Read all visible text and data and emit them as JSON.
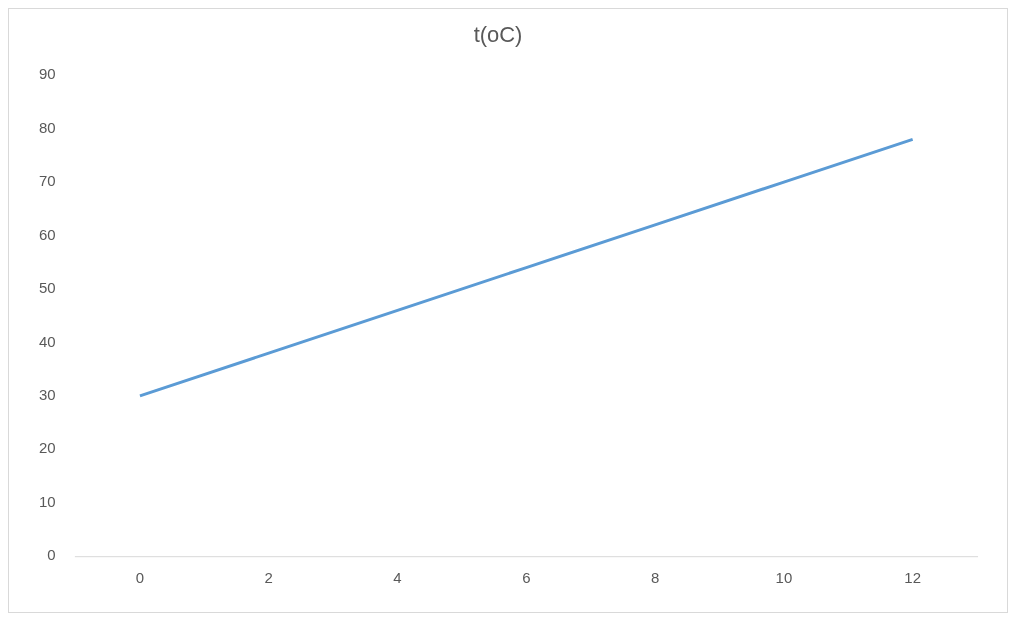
{
  "chart_data": {
    "type": "line",
    "title": "t(oC)",
    "categories": [
      "0",
      "2",
      "4",
      "6",
      "8",
      "10",
      "12"
    ],
    "series": [
      {
        "color": "#5b9bd5",
        "values": [
          30,
          38,
          46,
          54,
          62,
          70,
          78
        ]
      }
    ],
    "ylim": [
      0,
      90
    ],
    "yticks": [
      0,
      10,
      20,
      30,
      40,
      50,
      60,
      70,
      80,
      90
    ],
    "grid": false,
    "legend": false,
    "marker": "none",
    "line_style": "solid"
  }
}
